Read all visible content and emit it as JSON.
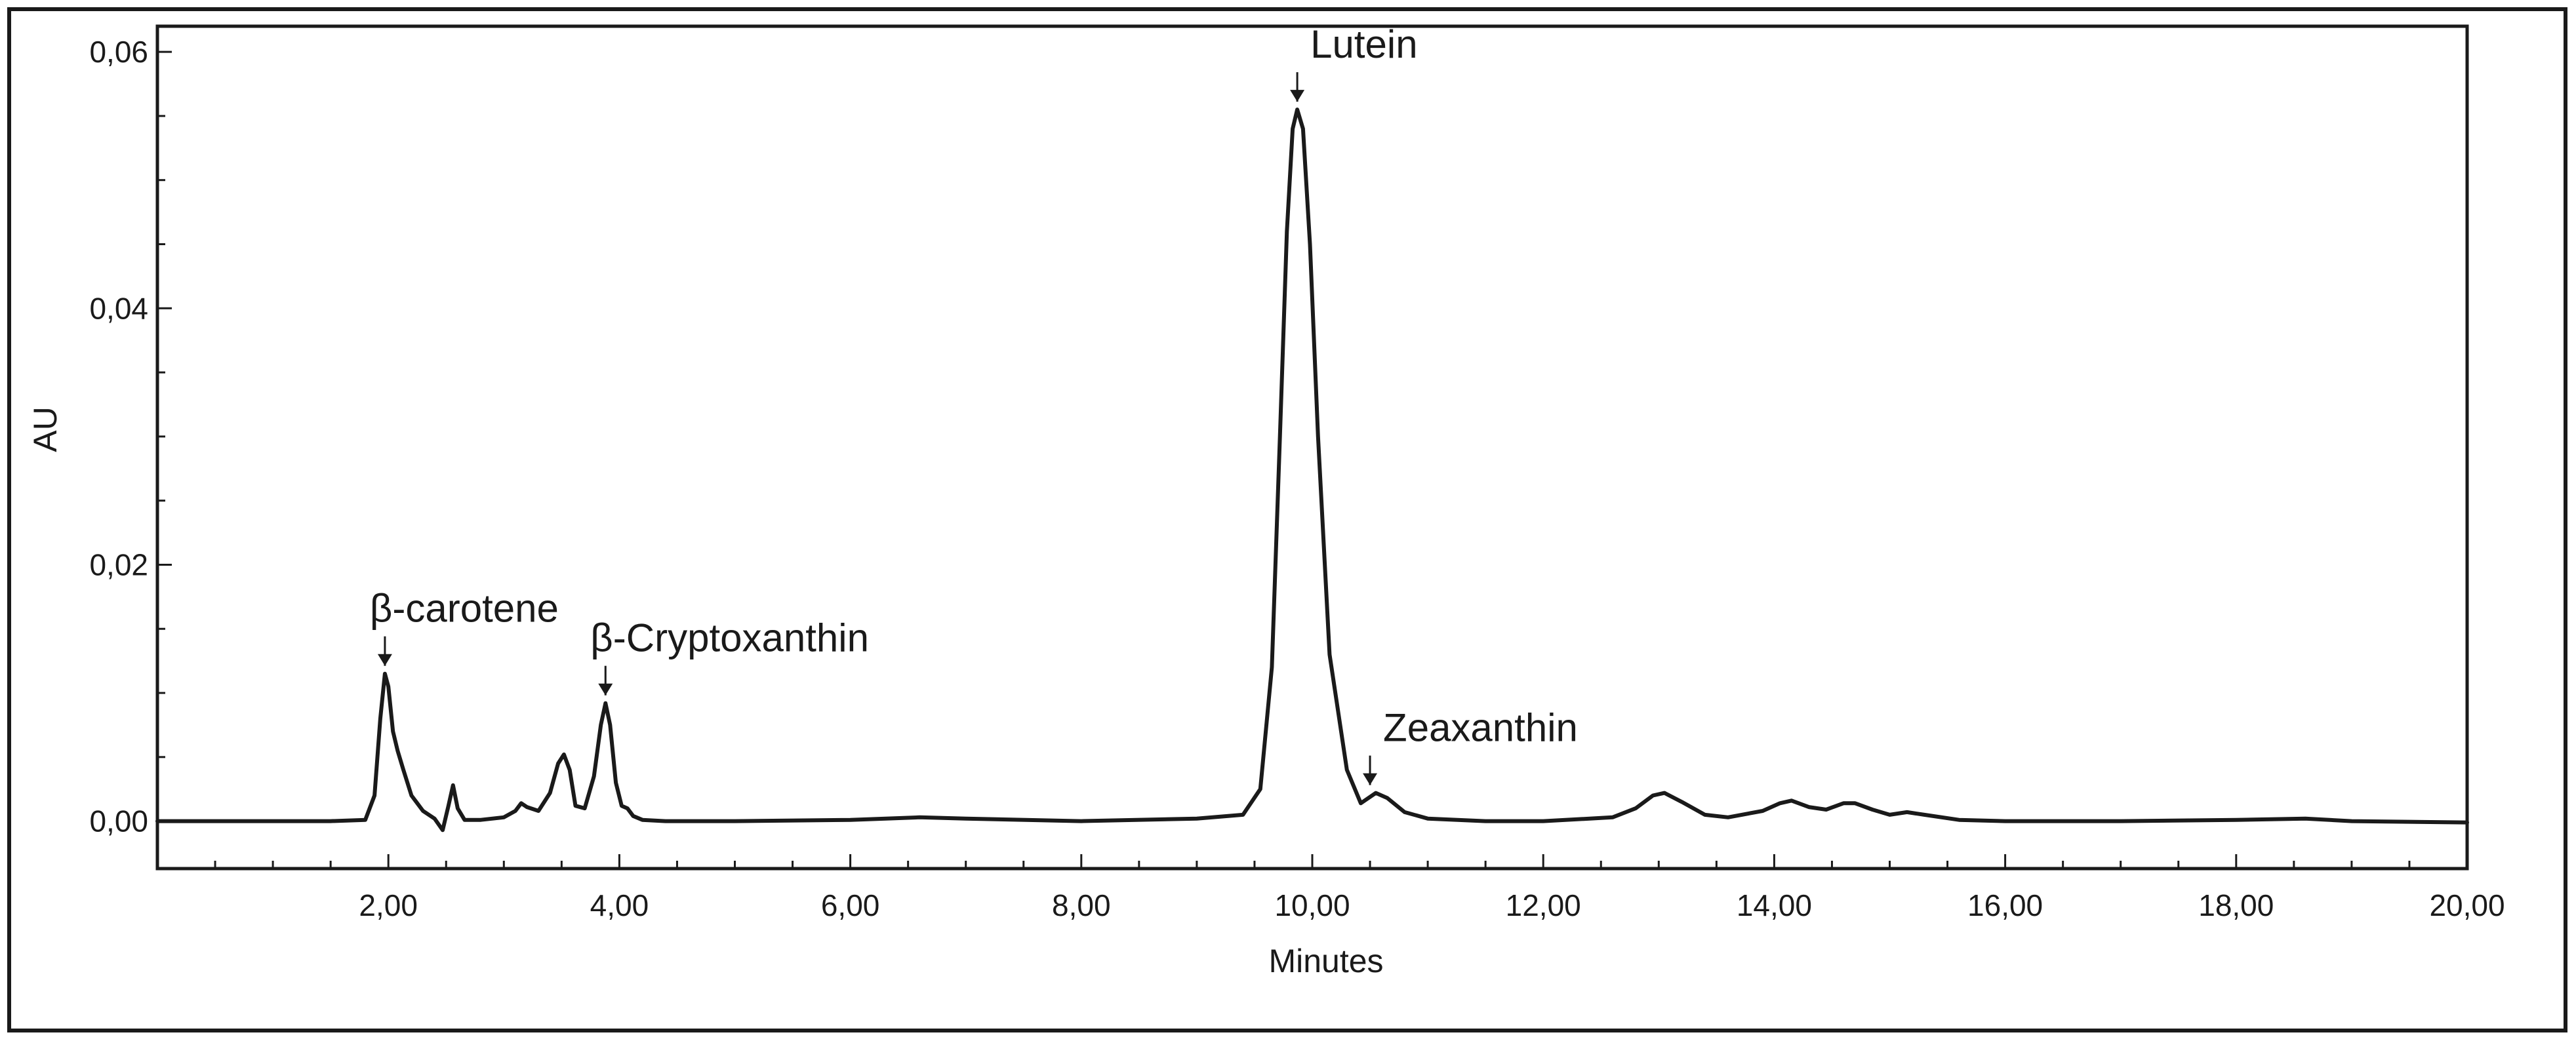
{
  "chart_data": {
    "type": "line",
    "title": "",
    "xlabel": "Minutes",
    "ylabel": "AU",
    "xlim": [
      0,
      20
    ],
    "ylim": [
      -0.0037,
      0.062
    ],
    "grid": false,
    "x_ticks": [
      {
        "value": 2,
        "label": "2,00"
      },
      {
        "value": 4,
        "label": "4,00"
      },
      {
        "value": 6,
        "label": "6,00"
      },
      {
        "value": 8,
        "label": "8,00"
      },
      {
        "value": 10,
        "label": "10,00"
      },
      {
        "value": 12,
        "label": "12,00"
      },
      {
        "value": 14,
        "label": "14,00"
      },
      {
        "value": 16,
        "label": "16,00"
      },
      {
        "value": 18,
        "label": "18,00"
      },
      {
        "value": 20,
        "label": "20,00"
      }
    ],
    "y_ticks": [
      {
        "value": 0.0,
        "label": "0,00"
      },
      {
        "value": 0.02,
        "label": "0,02"
      },
      {
        "value": 0.04,
        "label": "0,04"
      },
      {
        "value": 0.06,
        "label": "0,06"
      }
    ],
    "series": [
      {
        "color": "#1a1a1a",
        "x": [
          0.0,
          0.5,
          1.0,
          1.5,
          1.8,
          1.88,
          1.93,
          1.97,
          2.0,
          2.04,
          2.08,
          2.13,
          2.2,
          2.3,
          2.4,
          2.47,
          2.52,
          2.56,
          2.6,
          2.66,
          2.8,
          3.0,
          3.1,
          3.15,
          3.2,
          3.3,
          3.4,
          3.47,
          3.52,
          3.57,
          3.62,
          3.7,
          3.78,
          3.84,
          3.88,
          3.92,
          3.97,
          4.02,
          4.07,
          4.12,
          4.2,
          4.4,
          5.0,
          6.0,
          6.6,
          7.0,
          8.0,
          9.0,
          9.4,
          9.55,
          9.65,
          9.72,
          9.78,
          9.83,
          9.87,
          9.92,
          9.98,
          10.05,
          10.15,
          10.3,
          10.42,
          10.55,
          10.65,
          10.8,
          11.0,
          11.5,
          12.0,
          12.6,
          12.8,
          12.95,
          13.05,
          13.2,
          13.4,
          13.6,
          13.9,
          14.05,
          14.15,
          14.3,
          14.45,
          14.6,
          14.7,
          14.85,
          15.0,
          15.15,
          15.3,
          15.6,
          16.0,
          17.0,
          18.0,
          18.6,
          19.0,
          20.0
        ],
        "y": [
          0.0,
          0.0,
          0.0,
          0.0,
          0.0001,
          0.002,
          0.008,
          0.0115,
          0.0105,
          0.007,
          0.0055,
          0.004,
          0.002,
          0.0008,
          0.0002,
          -0.0007,
          0.0012,
          0.0028,
          0.001,
          0.0001,
          0.0001,
          0.0003,
          0.0008,
          0.0014,
          0.0011,
          0.0008,
          0.0022,
          0.0045,
          0.0052,
          0.004,
          0.0012,
          0.001,
          0.0035,
          0.0075,
          0.0092,
          0.0075,
          0.003,
          0.0012,
          0.001,
          0.0004,
          0.0001,
          0.0,
          0.0,
          0.0001,
          0.0003,
          0.0002,
          0.0,
          0.0002,
          0.0005,
          0.0025,
          0.012,
          0.03,
          0.046,
          0.054,
          0.0555,
          0.054,
          0.045,
          0.03,
          0.013,
          0.004,
          0.0014,
          0.0022,
          0.0018,
          0.0007,
          0.0002,
          0.0,
          0.0,
          0.0003,
          0.001,
          0.002,
          0.0022,
          0.0015,
          0.0005,
          0.0003,
          0.0008,
          0.0014,
          0.0016,
          0.0011,
          0.0009,
          0.0014,
          0.0014,
          0.0009,
          0.0005,
          0.0007,
          0.0005,
          0.0001,
          0.0,
          0.0,
          0.0001,
          0.0002,
          0.0,
          -0.0001
        ]
      }
    ],
    "annotations": [
      {
        "label": "β-carotene",
        "x": 1.97,
        "y": 0.0115
      },
      {
        "label": "β-Cryptoxanthin",
        "x": 3.88,
        "y": 0.0092
      },
      {
        "label": "Lutein",
        "x": 9.87,
        "y": 0.0555
      },
      {
        "label": "Zeaxanthin",
        "x": 10.5,
        "y": 0.0022
      }
    ]
  }
}
